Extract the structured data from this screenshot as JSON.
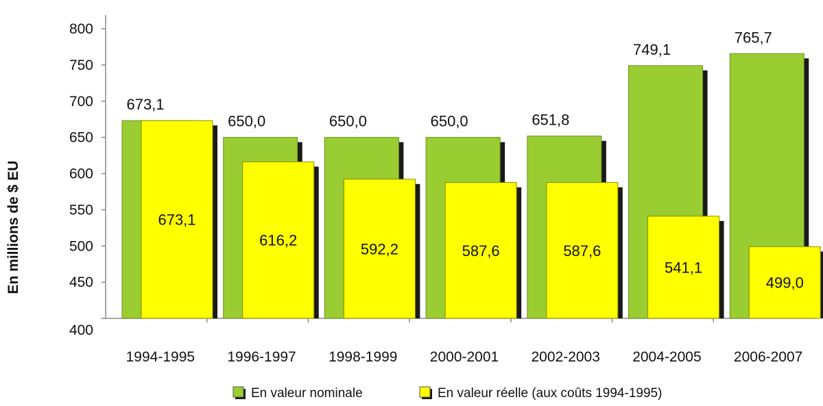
{
  "chart_data": {
    "type": "bar",
    "categories": [
      "1994-1995",
      "1996-1997",
      "1998-1999",
      "2000-2001",
      "2002-2003",
      "2004-2005",
      "2006-2007"
    ],
    "series": [
      {
        "name": "En valeur nominale",
        "values": [
          673.1,
          650.0,
          650.0,
          650.0,
          651.8,
          749.1,
          765.7
        ],
        "labels": [
          "673,1",
          "650,0",
          "650,0",
          "650,0",
          "651,8",
          "749,1",
          "765,7"
        ],
        "color": "#9acd32"
      },
      {
        "name": "En valeur réelle (aux coûts 1994-1995)",
        "values": [
          673.1,
          616.2,
          592.2,
          587.6,
          587.6,
          541.1,
          499.0
        ],
        "labels": [
          "673,1",
          "616,2",
          "592,2",
          "587,6",
          "587,6",
          "541,1",
          "499,0"
        ],
        "color": "#ffff00"
      }
    ],
    "yticks": [
      400,
      450,
      500,
      550,
      600,
      650,
      700,
      750,
      800
    ],
    "ylim": [
      400,
      800
    ],
    "ylabel": "En millions de  $ EU",
    "xlabel": "",
    "grid": false,
    "legend_position": "bottom"
  }
}
